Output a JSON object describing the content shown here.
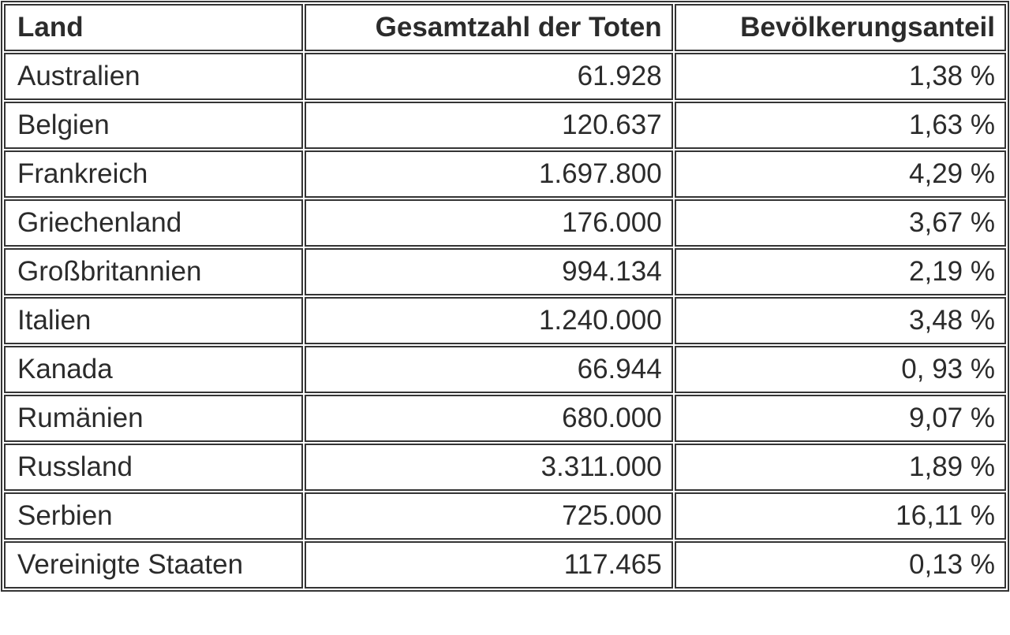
{
  "table": {
    "columns": [
      {
        "key": "land",
        "label": "Land",
        "align": "left"
      },
      {
        "key": "total",
        "label": "Gesamtzahl der Toten",
        "align": "right"
      },
      {
        "key": "share",
        "label": "Bevölkerungsanteil",
        "align": "right"
      }
    ],
    "rows": [
      {
        "land": "Australien",
        "total": "61.928",
        "share": "1,38 %"
      },
      {
        "land": "Belgien",
        "total": "120.637",
        "share": "1,63 %"
      },
      {
        "land": "Frankreich",
        "total": "1.697.800",
        "share": "4,29 %"
      },
      {
        "land": "Griechenland",
        "total": "176.000",
        "share": "3,67 %"
      },
      {
        "land": "Großbritannien",
        "total": "994.134",
        "share": "2,19 %"
      },
      {
        "land": "Italien",
        "total": "1.240.000",
        "share": "3,48 %"
      },
      {
        "land": "Kanada",
        "total": "66.944",
        "share": "0, 93 %"
      },
      {
        "land": "Rumänien",
        "total": "680.000",
        "share": "9,07 %"
      },
      {
        "land": "Russland",
        "total": "3.311.000",
        "share": "1,89 %"
      },
      {
        "land": "Serbien",
        "total": "725.000",
        "share": "16,11 %"
      },
      {
        "land": "Vereinigte Staaten",
        "total": "117.465",
        "share": "0,13 %"
      }
    ]
  },
  "colors": {
    "border": "#343434",
    "text": "#2b2b2b",
    "background": "#ffffff"
  }
}
